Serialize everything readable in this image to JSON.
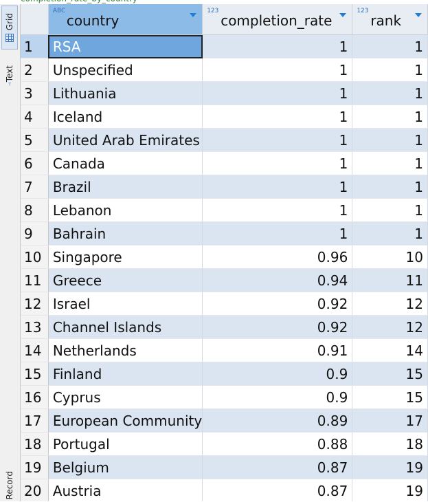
{
  "title_strip": "completion_rate_by_country",
  "sidebar": {
    "grid_label": "Grid",
    "text_label": "Text",
    "record_label": "Record"
  },
  "columns": [
    {
      "type_badge": "ABC",
      "label": "country"
    },
    {
      "type_badge": "123",
      "label": "completion_rate"
    },
    {
      "type_badge": "123",
      "label": "rank"
    }
  ],
  "rows": [
    {
      "n": "1",
      "country": "RSA",
      "completion_rate": "1",
      "rank": "1"
    },
    {
      "n": "2",
      "country": "Unspecified",
      "completion_rate": "1",
      "rank": "1"
    },
    {
      "n": "3",
      "country": "Lithuania",
      "completion_rate": "1",
      "rank": "1"
    },
    {
      "n": "4",
      "country": "Iceland",
      "completion_rate": "1",
      "rank": "1"
    },
    {
      "n": "5",
      "country": "United Arab Emirates",
      "completion_rate": "1",
      "rank": "1"
    },
    {
      "n": "6",
      "country": "Canada",
      "completion_rate": "1",
      "rank": "1"
    },
    {
      "n": "7",
      "country": "Brazil",
      "completion_rate": "1",
      "rank": "1"
    },
    {
      "n": "8",
      "country": "Lebanon",
      "completion_rate": "1",
      "rank": "1"
    },
    {
      "n": "9",
      "country": "Bahrain",
      "completion_rate": "1",
      "rank": "1"
    },
    {
      "n": "10",
      "country": "Singapore",
      "completion_rate": "0.96",
      "rank": "10"
    },
    {
      "n": "11",
      "country": "Greece",
      "completion_rate": "0.94",
      "rank": "11"
    },
    {
      "n": "12",
      "country": "Israel",
      "completion_rate": "0.92",
      "rank": "12"
    },
    {
      "n": "13",
      "country": "Channel Islands",
      "completion_rate": "0.92",
      "rank": "12"
    },
    {
      "n": "14",
      "country": "Netherlands",
      "completion_rate": "0.91",
      "rank": "14"
    },
    {
      "n": "15",
      "country": "Finland",
      "completion_rate": "0.9",
      "rank": "15"
    },
    {
      "n": "16",
      "country": "Cyprus",
      "completion_rate": "0.9",
      "rank": "15"
    },
    {
      "n": "17",
      "country": "European Community",
      "completion_rate": "0.89",
      "rank": "17"
    },
    {
      "n": "18",
      "country": "Portugal",
      "completion_rate": "0.88",
      "rank": "18"
    },
    {
      "n": "19",
      "country": "Belgium",
      "completion_rate": "0.87",
      "rank": "19"
    },
    {
      "n": "20",
      "country": "Austria",
      "completion_rate": "0.87",
      "rank": "19"
    }
  ],
  "colors": {
    "header_selected": "#8dbbe8",
    "row_alt": "#dbe5f1",
    "cell_selected": "#6fa6dd"
  },
  "icons": {
    "grid": "grid-icon",
    "text": "text-icon",
    "sort": "sort-arrow-icon"
  }
}
